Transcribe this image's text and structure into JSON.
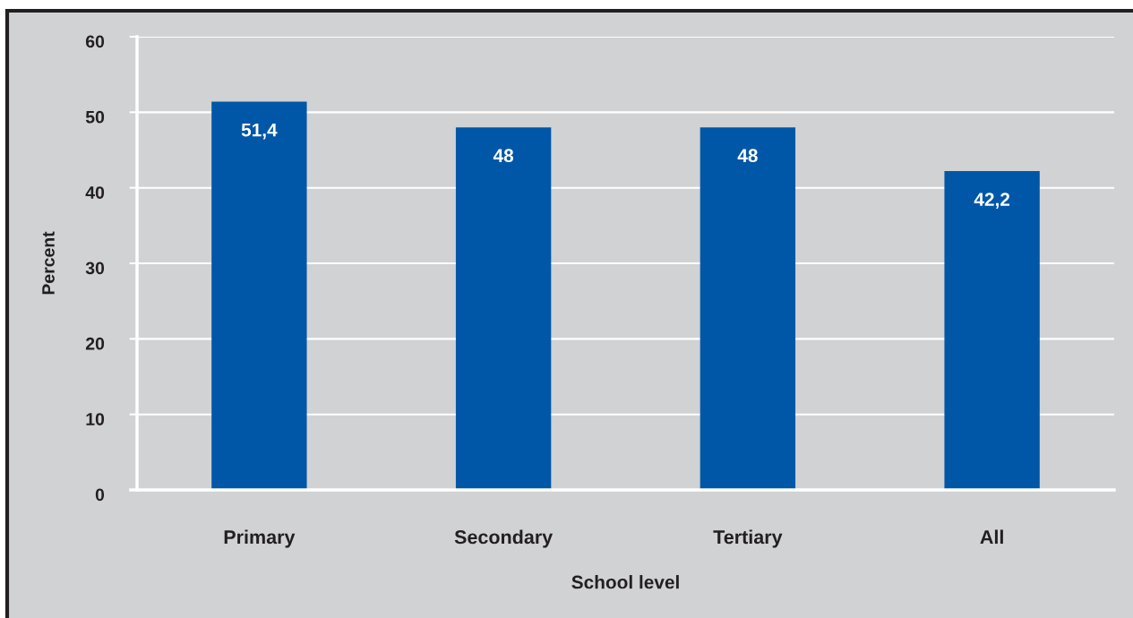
{
  "chart_data": {
    "type": "bar",
    "xlabel": "School level",
    "ylabel": "Percent",
    "categories": [
      "Primary",
      "Secondary",
      "Tertiary",
      "All"
    ],
    "values": [
      51.4,
      48,
      48,
      42.2
    ],
    "color": "#0057a8",
    "value_labels": [
      "51,4",
      "48",
      "48",
      "42,2"
    ],
    "ylim": [
      0,
      60
    ],
    "yticks": [
      0,
      10,
      20,
      30,
      40,
      50,
      60
    ],
    "grid": "y",
    "legend": false
  }
}
